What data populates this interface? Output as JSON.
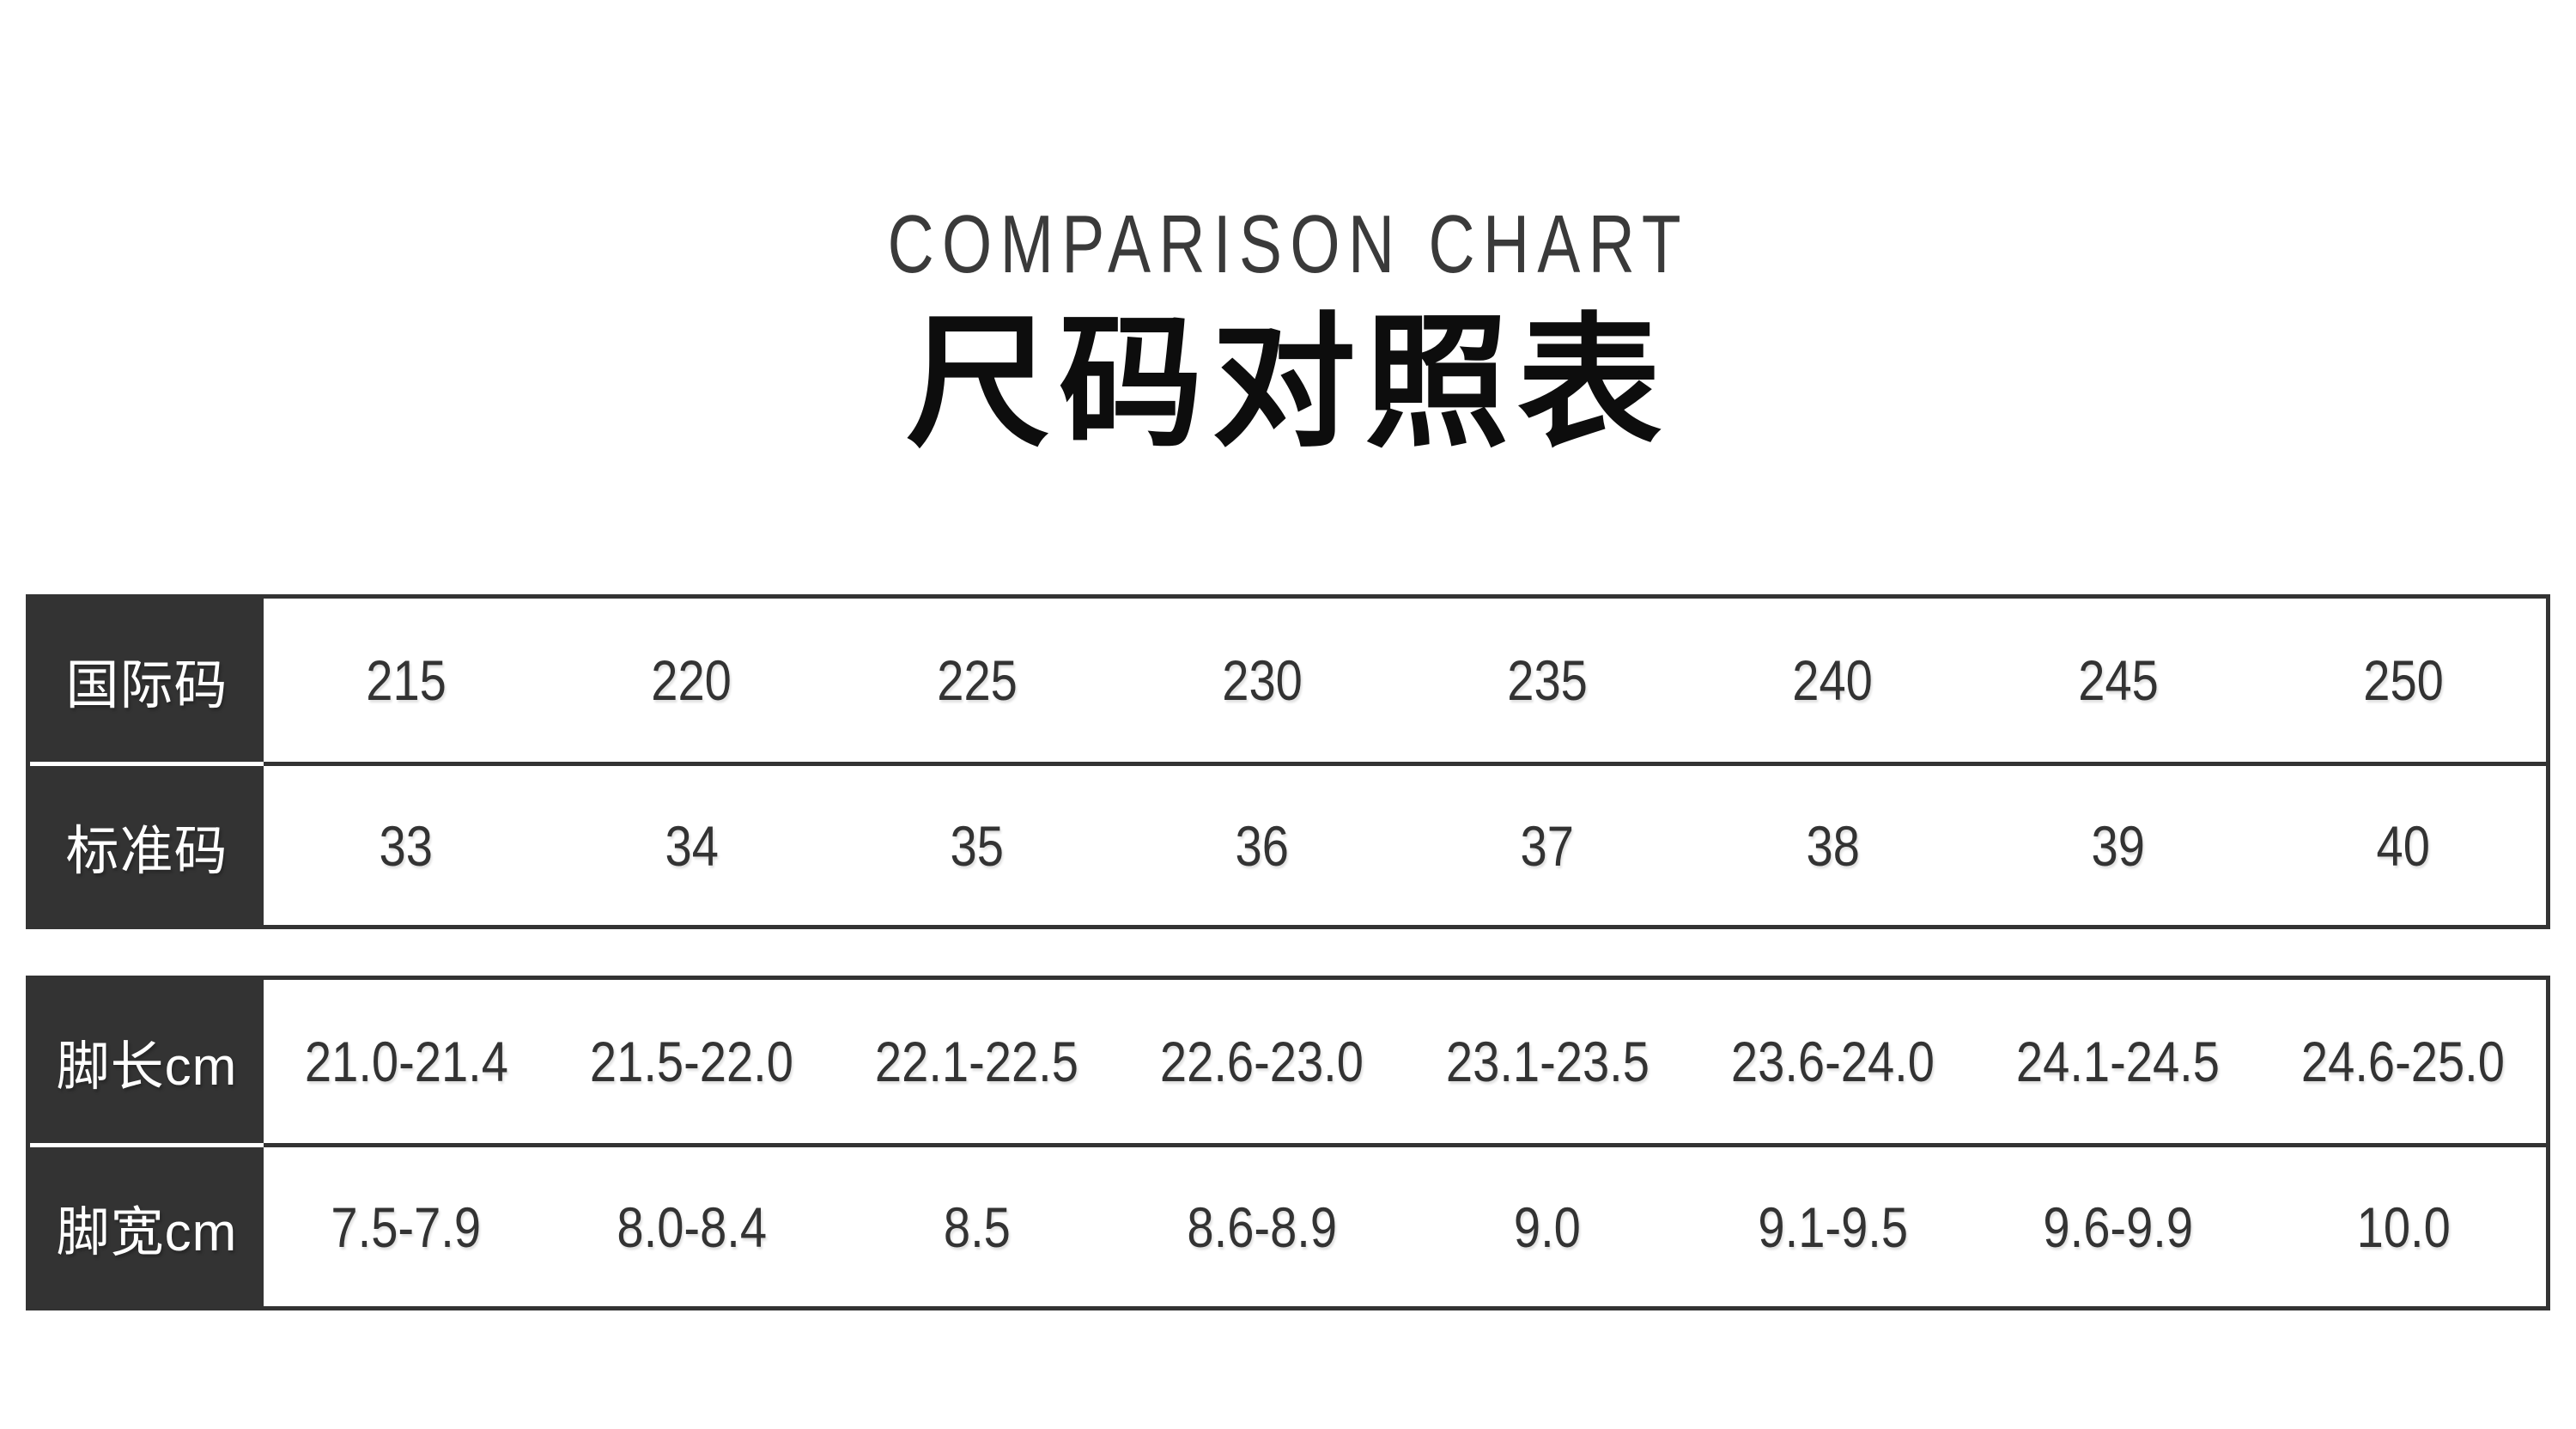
{
  "colors": {
    "page_bg": "#ffffff",
    "header_cell_bg": "#333333",
    "header_cell_text": "#ffffff",
    "value_text": "#333333",
    "border": "#333333",
    "subtitle_text": "#3a3a3a",
    "title_text": "#0d0d0d"
  },
  "chart_data": {
    "type": "table",
    "title": "尺码对照表",
    "subtitle": "COMPARISON CHART",
    "grid": "horizontal-row-borders-only",
    "legend_position": "none",
    "columns": 8,
    "tables": [
      {
        "rows": [
          {
            "label": "国际码",
            "values": [
              "215",
              "220",
              "225",
              "230",
              "235",
              "240",
              "245",
              "250"
            ]
          },
          {
            "label": "标准码",
            "values": [
              "33",
              "34",
              "35",
              "36",
              "37",
              "38",
              "39",
              "40"
            ]
          }
        ]
      },
      {
        "rows": [
          {
            "label": "脚长cm",
            "values": [
              "21.0-21.4",
              "21.5-22.0",
              "22.1-22.5",
              "22.6-23.0",
              "23.1-23.5",
              "23.6-24.0",
              "24.1-24.5",
              "24.6-25.0"
            ]
          },
          {
            "label": "脚宽cm",
            "values": [
              "7.5-7.9",
              "8.0-8.4",
              "8.5",
              "8.6-8.9",
              "9.0",
              "9.1-9.5",
              "9.6-9.9",
              "10.0"
            ]
          }
        ]
      }
    ]
  }
}
